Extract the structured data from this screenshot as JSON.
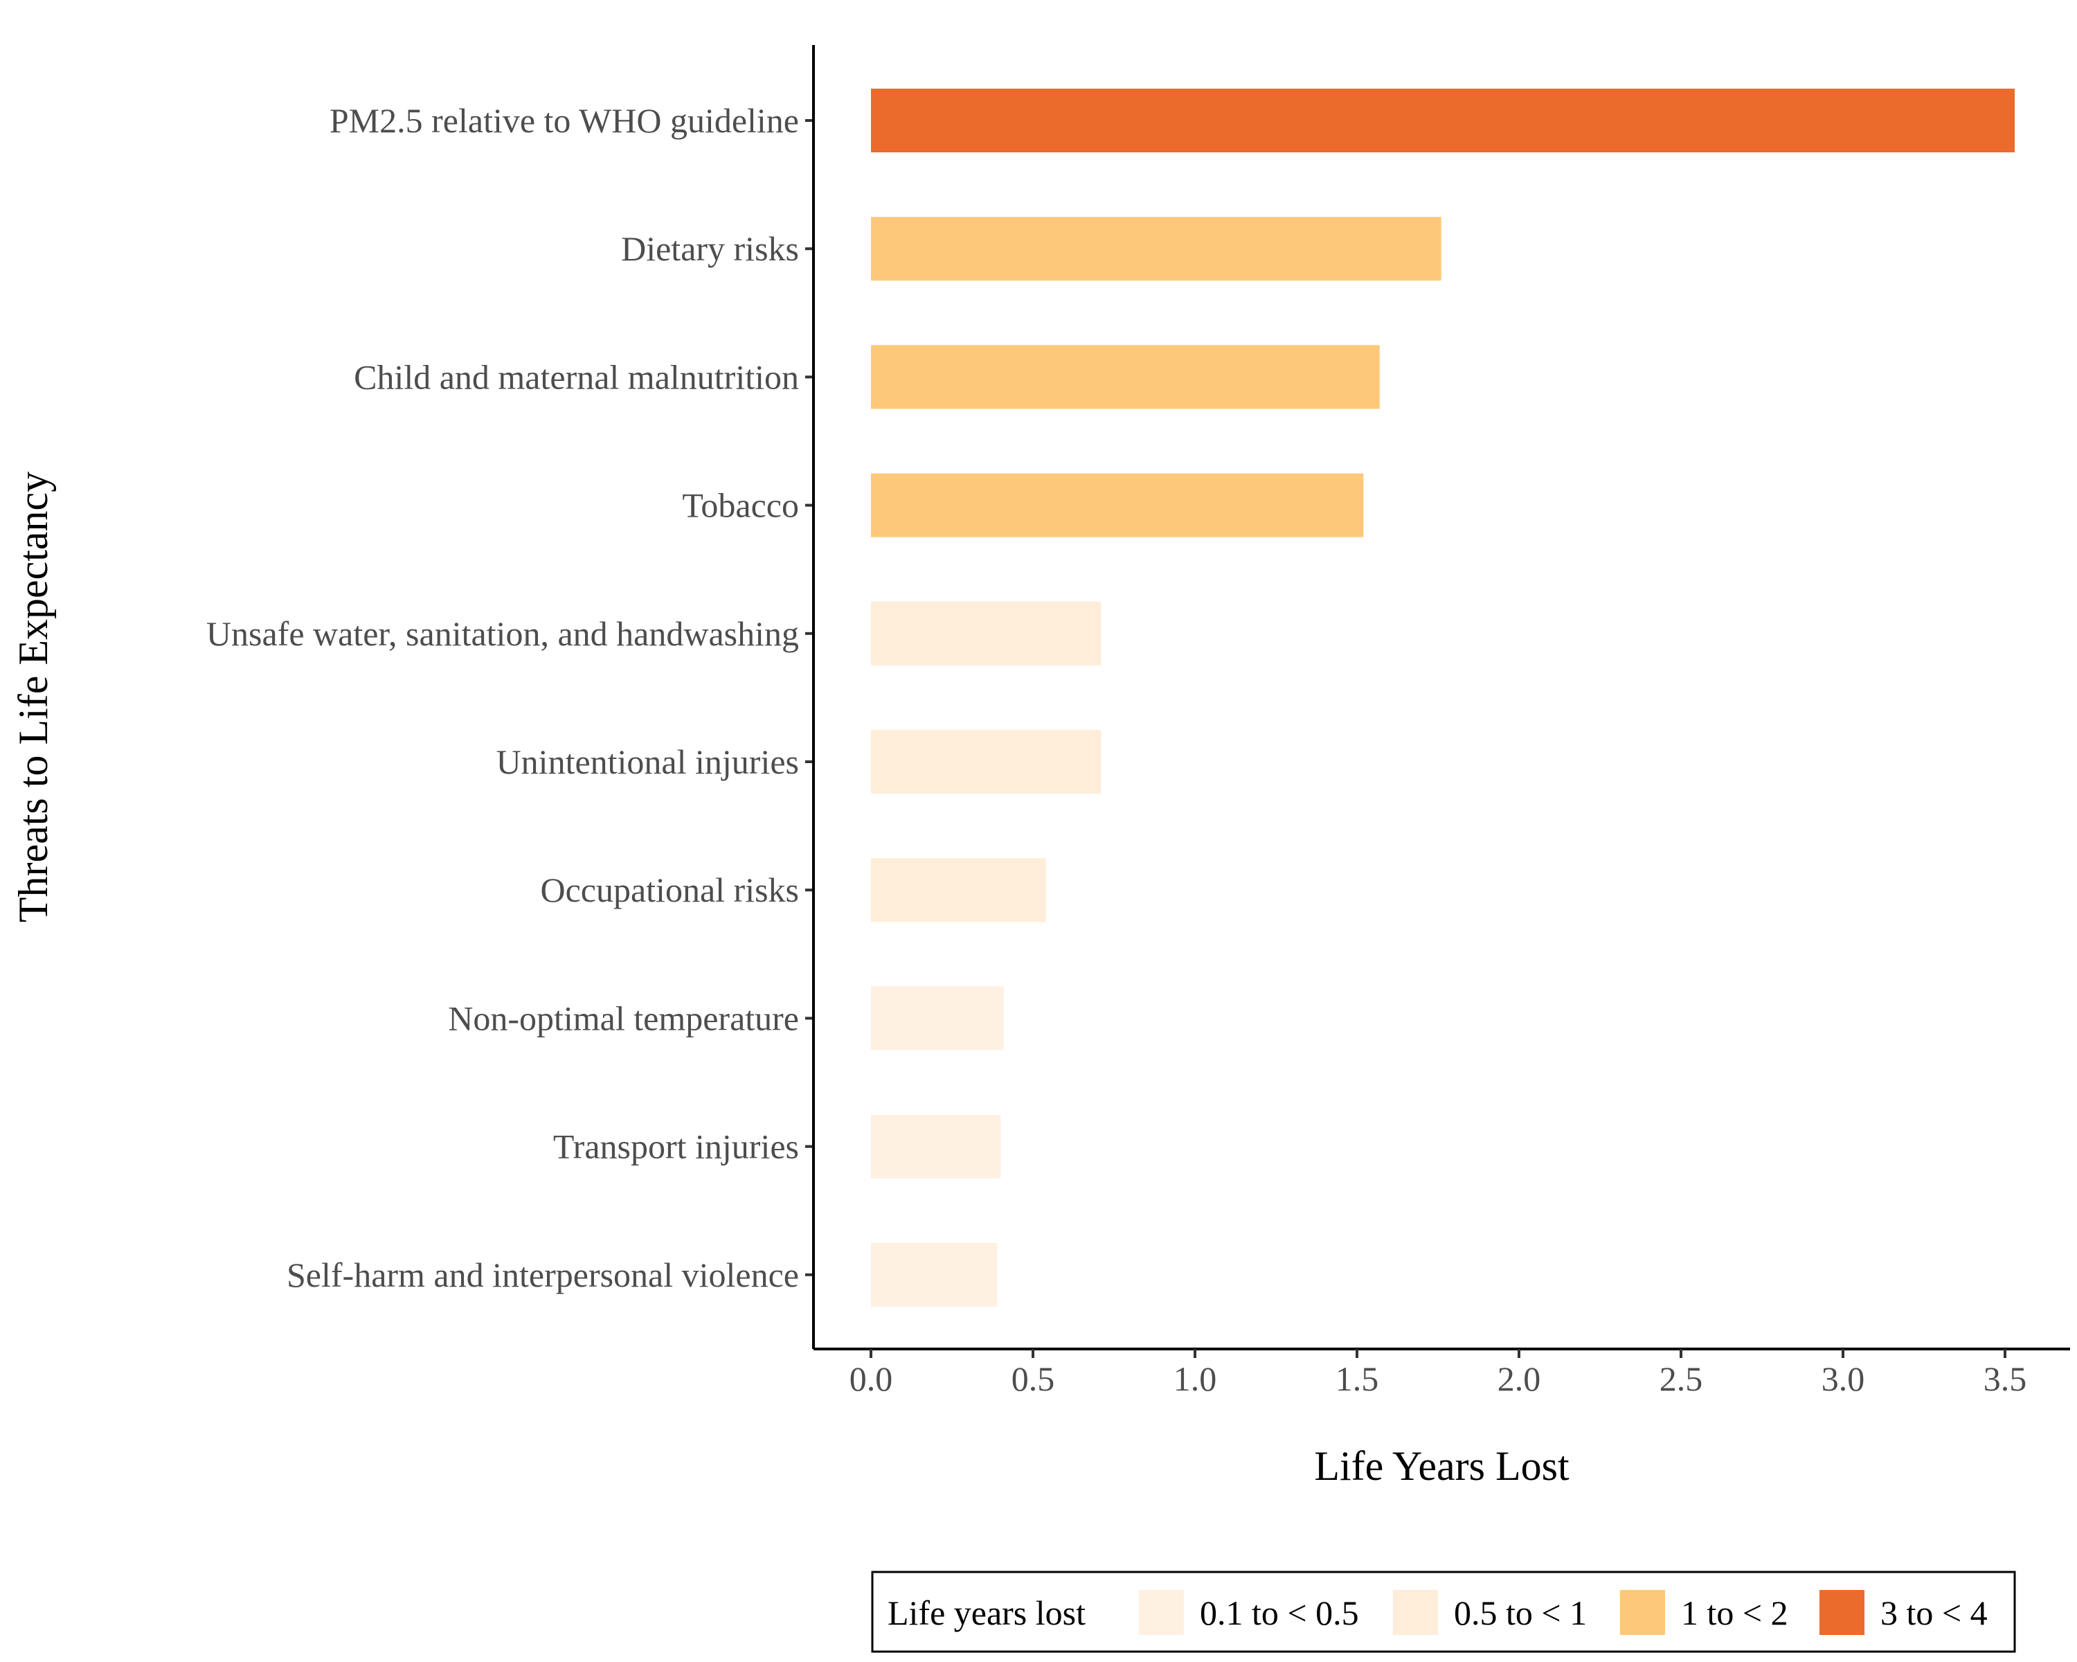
{
  "chart_data": {
    "type": "bar",
    "orientation": "horizontal",
    "categories": [
      "PM2.5 relative to WHO guideline",
      "Dietary risks",
      "Child and maternal malnutrition",
      "Tobacco",
      "Unsafe water, sanitation, and handwashing",
      "Unintentional injuries",
      "Occupational risks",
      "Non-optimal temperature",
      "Transport injuries",
      "Self-harm and interpersonal violence"
    ],
    "values": [
      3.53,
      1.76,
      1.57,
      1.52,
      0.71,
      0.71,
      0.54,
      0.41,
      0.4,
      0.39
    ],
    "value_groups": [
      "3 to < 4",
      "1 to < 2",
      "1 to < 2",
      "1 to < 2",
      "0.5 to < 1",
      "0.5 to < 1",
      "0.5 to < 1",
      "0.1 to < 0.5",
      "0.1 to < 0.5",
      "0.1 to < 0.5"
    ],
    "xlabel": "Life Years Lost",
    "ylabel": "Threats to Life Expectancy",
    "xlim": [
      -0.18,
      3.7
    ],
    "xticks": [
      "0.0",
      "0.5",
      "1.0",
      "1.5",
      "2.0",
      "2.5",
      "3.0",
      "3.5"
    ],
    "grid": false,
    "legend": {
      "position": "bottom",
      "title": "Life years lost",
      "entries": [
        {
          "label": "0.1 to < 0.5",
          "color": "#FEF1E2"
        },
        {
          "label": "0.5 to < 1",
          "color": "#FEEDD8"
        },
        {
          "label": "1 to < 2",
          "color": "#FEC87A"
        },
        {
          "label": "3 to < 4",
          "color": "#EB6B2D"
        }
      ]
    }
  }
}
